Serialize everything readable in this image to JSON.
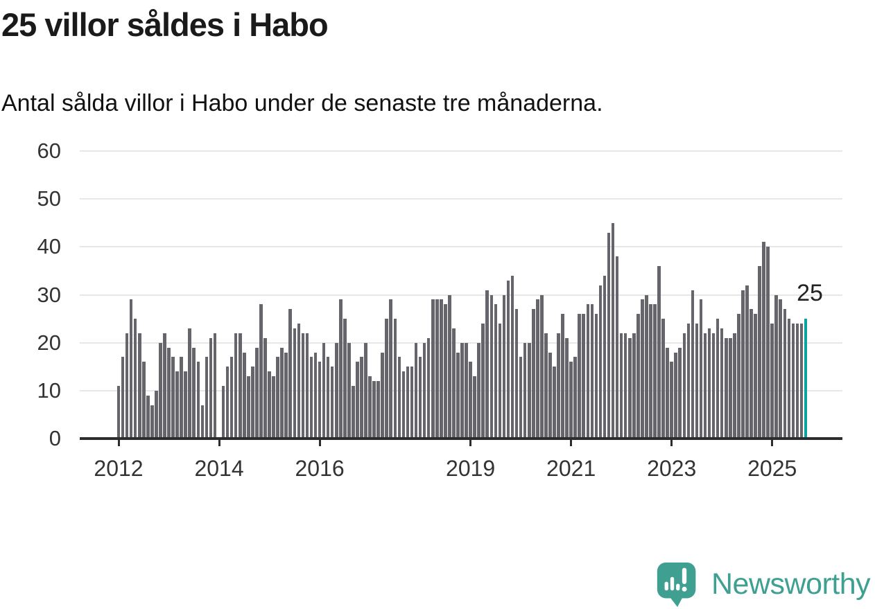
{
  "header": {
    "title": "25 villor såldes i Habo",
    "subtitle": "Antal sålda villor i Habo under de senaste tre månaderna."
  },
  "chart_data": {
    "type": "bar",
    "title": "25 villor såldes i Habo",
    "subtitle": "Antal sålda villor i Habo under de senaste tre månaderna.",
    "xlabel": "",
    "ylabel": "",
    "ylim": [
      0,
      60
    ],
    "y_ticks": [
      0,
      10,
      20,
      30,
      40,
      50,
      60
    ],
    "grid": "horizontal",
    "legend": "none",
    "start_month": "2012-01",
    "frequency": "monthly",
    "x_tick_labels": [
      "2012",
      "2014",
      "2016",
      "2019",
      "2021",
      "2023",
      "2025"
    ],
    "x_tick_month_index": [
      0,
      24,
      48,
      84,
      108,
      132,
      156
    ],
    "values": [
      11,
      17,
      22,
      29,
      25,
      22,
      16,
      9,
      7,
      10,
      20,
      22,
      19,
      17,
      14,
      17,
      14,
      23,
      19,
      16,
      7,
      17,
      21,
      22,
      0,
      11,
      15,
      17,
      22,
      22,
      18,
      13,
      15,
      19,
      28,
      21,
      14,
      13,
      17,
      19,
      18,
      27,
      23,
      24,
      22,
      22,
      17,
      18,
      16,
      20,
      17,
      15,
      20,
      29,
      25,
      20,
      11,
      16,
      17,
      20,
      13,
      12,
      12,
      18,
      25,
      29,
      25,
      17,
      14,
      15,
      15,
      20,
      17,
      20,
      21,
      29,
      29,
      29,
      28,
      30,
      23,
      18,
      20,
      20,
      16,
      13,
      20,
      24,
      31,
      30,
      28,
      24,
      30,
      33,
      34,
      27,
      17,
      20,
      20,
      27,
      29,
      30,
      22,
      18,
      15,
      22,
      26,
      21,
      16,
      17,
      26,
      26,
      28,
      28,
      26,
      32,
      34,
      43,
      45,
      38,
      22,
      22,
      21,
      22,
      26,
      29,
      30,
      28,
      28,
      36,
      25,
      19,
      16,
      18,
      19,
      22,
      24,
      31,
      24,
      29,
      22,
      23,
      22,
      25,
      23,
      21,
      21,
      22,
      26,
      31,
      32,
      27,
      26,
      36,
      41,
      40,
      24,
      30,
      29,
      27,
      25,
      24,
      24,
      24,
      25
    ],
    "highlight_last_bar": true,
    "last_value": 25,
    "annotation": {
      "text": "25",
      "applies_to": "last-bar"
    }
  },
  "colors": {
    "bar": "#65656B",
    "highlight": "#0BA3A1",
    "grid": "#E7E7E7",
    "axis": "#2D2D2D",
    "title_text": "#1A1A1A",
    "tick_text": "#333333",
    "annotation_text": "#222222",
    "brand": "#3FA092"
  },
  "footer": {
    "brand": "Newsworthy"
  }
}
